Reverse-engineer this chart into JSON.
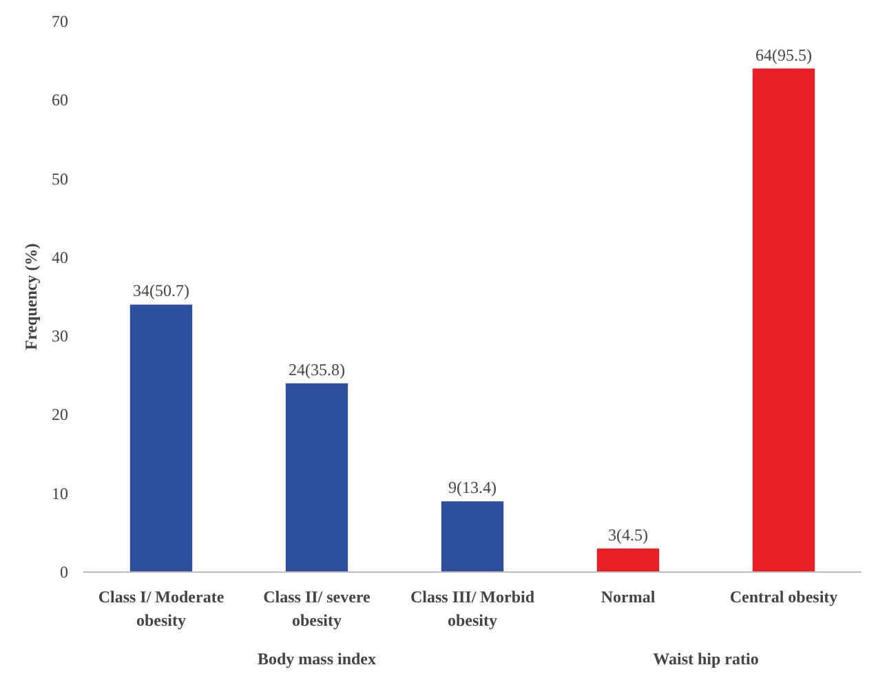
{
  "chart_data": {
    "type": "bar",
    "ylabel": "Frequency (%)",
    "categories": [
      "Class I/ Moderate obesity",
      "Class II/ severe obesity",
      "Class III/ Morbid obesity",
      "Normal",
      "Central obesity"
    ],
    "values": [
      34,
      24,
      9,
      3,
      64
    ],
    "colors": [
      "#2e4f9e",
      "#2e4f9e",
      "#2e4f9e",
      "#e82026",
      "#e82026"
    ],
    "value_labels": [
      "34(50.7)",
      "24(35.8)",
      "9(13.4)",
      "3(4.5)",
      "64(95.5)"
    ],
    "annotations": [
      "Body mass index",
      "Waist hip ratio"
    ],
    "ylim": [
      0,
      70
    ],
    "yticks": [
      0,
      10,
      20,
      30,
      40,
      50,
      60,
      70
    ],
    "grid": false
  }
}
